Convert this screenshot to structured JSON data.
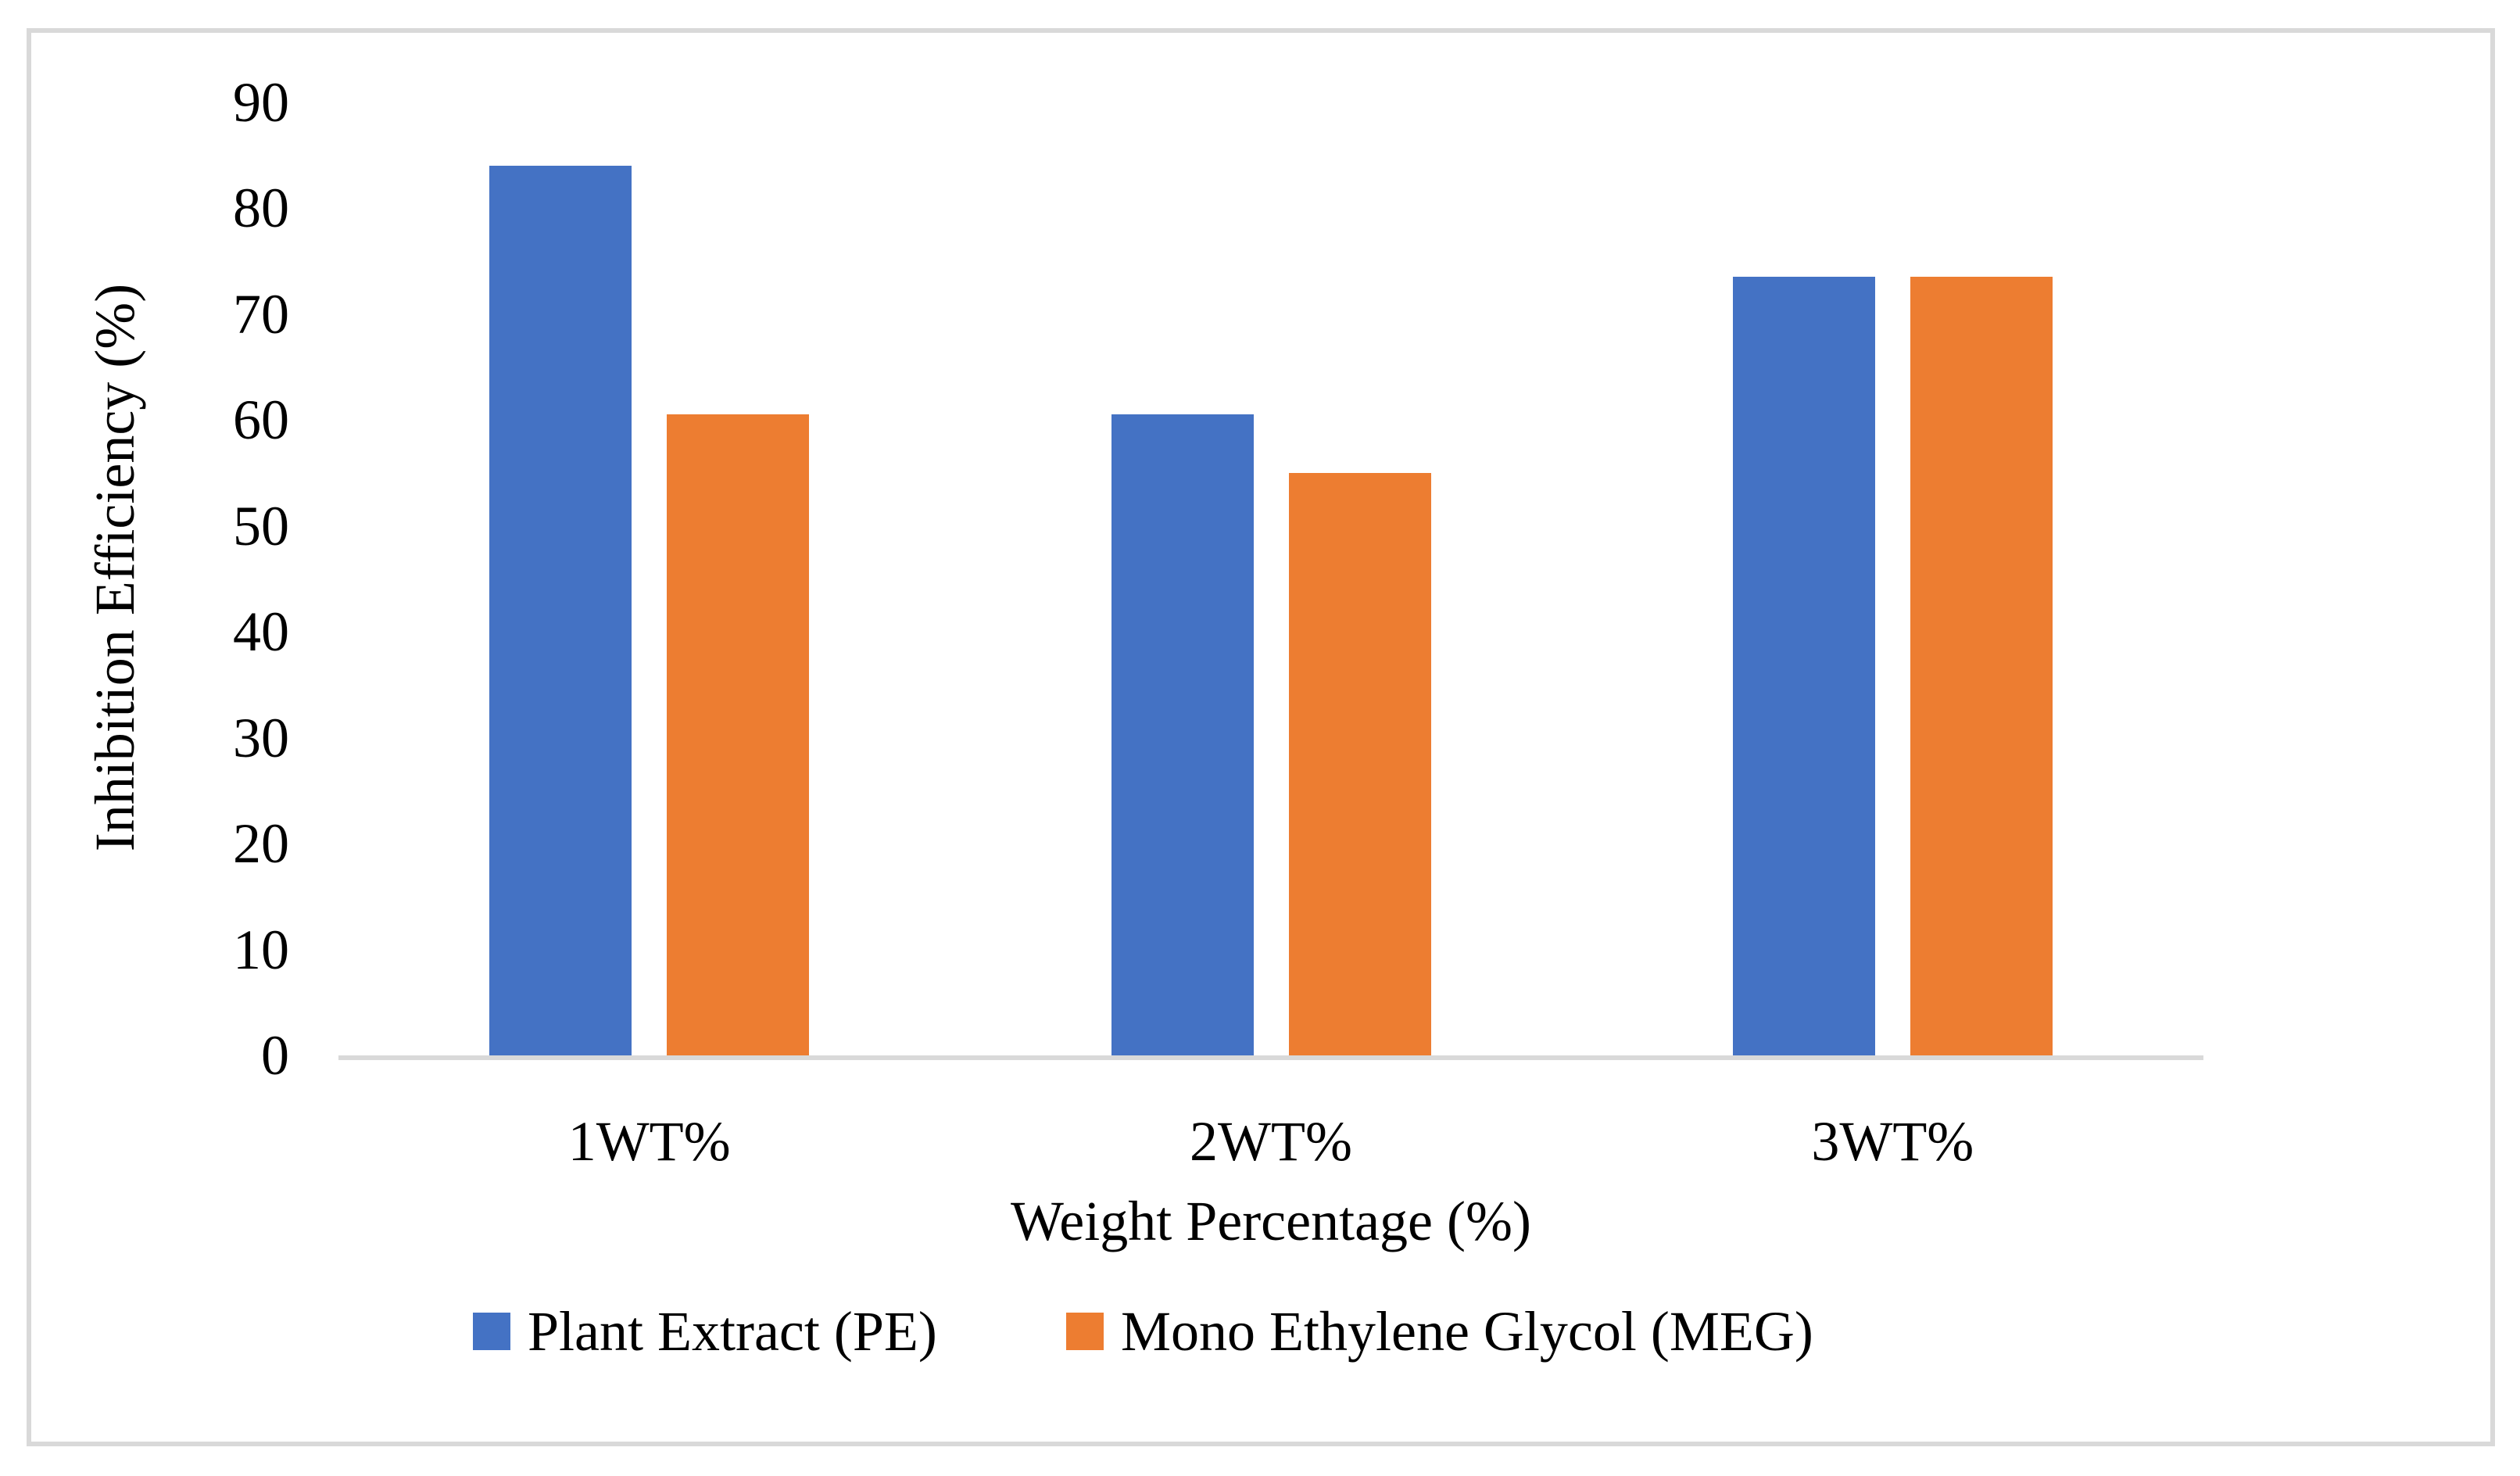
{
  "figure": {
    "background": "#FFFFFF",
    "frame_border_color": "#D9D9D9"
  },
  "chart_data": {
    "type": "bar",
    "title": "",
    "categories": [
      "1WT%",
      "2WT%",
      "3WT%"
    ],
    "series": [
      {
        "name": "Plant Extract (PE)",
        "color": "#4472C4",
        "values": [
          84,
          60.5,
          73.5
        ]
      },
      {
        "name": "Mono Ethylene Glycol (MEG)",
        "color": "#ED7D31",
        "values": [
          60.5,
          55,
          73.5
        ]
      }
    ],
    "xlabel": "Weight Percentage (%)",
    "ylabel": "Inhibition Efficiency (%)",
    "ylim": [
      0,
      90
    ],
    "yticks": [
      0,
      10,
      20,
      30,
      40,
      50,
      60,
      70,
      80,
      90
    ],
    "grid": false,
    "axis_line_color": "#D9D9D9",
    "legend_position": "bottom"
  }
}
